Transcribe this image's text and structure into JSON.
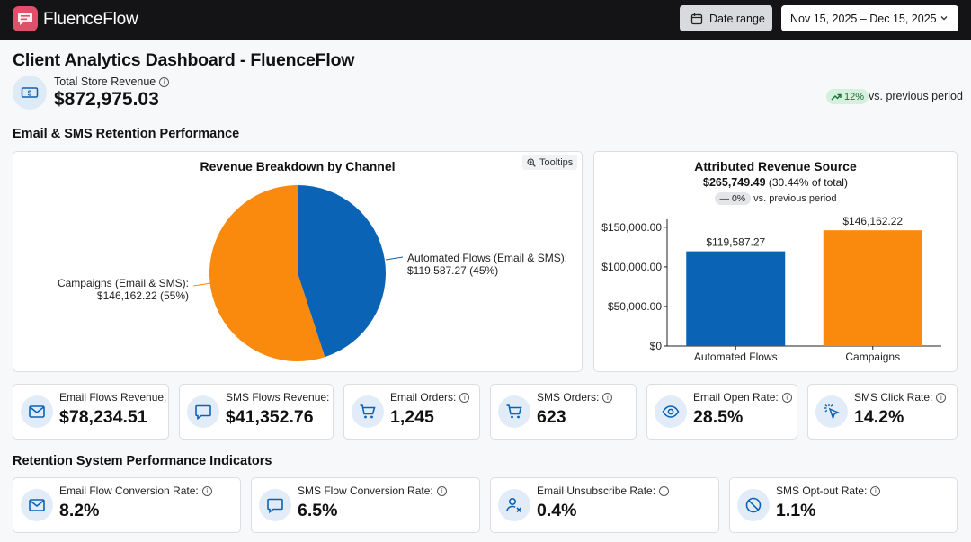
{
  "app": {
    "brand": "FluenceFlow"
  },
  "header": {
    "date_range_button": "Date range",
    "date_range_value": "Nov 15, 2025 – Dec 15, 2025"
  },
  "page": {
    "title": "Client Analytics Dashboard - FluenceFlow"
  },
  "total_revenue": {
    "label": "Total Store Revenue",
    "value": "$872,975.03",
    "change": "12%",
    "change_text": "vs. previous period"
  },
  "sections": {
    "retention_performance": "Email & SMS Retention Performance",
    "system_indicators": "Retention System Performance Indicators"
  },
  "pie_card": {
    "title": "Revenue Breakdown by Channel",
    "tooltips_label": "Tooltips",
    "label_flows_line1": "Automated Flows (Email & SMS):",
    "label_flows_line2": "$119,587.27 (45%)",
    "label_campaigns_line1": "Campaigns (Email & SMS):",
    "label_campaigns_line2": "$146,162.22 (55%)"
  },
  "bar_card": {
    "title": "Attributed Revenue Source",
    "value": "$265,749.49",
    "value_note": "(30.44% of total)",
    "change": "— 0%",
    "change_text": "vs. previous period"
  },
  "chart_data": [
    {
      "type": "pie",
      "title": "Revenue Breakdown by Channel",
      "slices": [
        {
          "label": "Automated Flows (Email & SMS)",
          "value": 119587.27,
          "percent": 45,
          "color": "#0b63b5"
        },
        {
          "label": "Campaigns (Email & SMS)",
          "value": 146162.22,
          "percent": 55,
          "color": "#f98a0d"
        }
      ]
    },
    {
      "type": "bar",
      "title": "Attributed Revenue Source",
      "categories": [
        "Automated Flows",
        "Campaigns"
      ],
      "values": [
        119587.27,
        146162.22
      ],
      "value_labels": [
        "$119,587.27",
        "$146,162.22"
      ],
      "colors": [
        "#0b63b5",
        "#f98a0d"
      ],
      "yticks": [
        "$0",
        "$50,000.00",
        "$100,000.00",
        "$150,000.00"
      ],
      "ylim": [
        0,
        160000
      ]
    }
  ],
  "metrics_row1": [
    {
      "label": "Email Flows Revenue:",
      "value": "$78,234.51",
      "icon": "mail-icon"
    },
    {
      "label": "SMS Flows Revenue:",
      "value": "$41,352.76",
      "icon": "chat-icon"
    },
    {
      "label": "Email Orders:",
      "value": "1,245",
      "icon": "cart-icon"
    },
    {
      "label": "SMS Orders:",
      "value": "623",
      "icon": "cart-icon"
    },
    {
      "label": "Email Open Rate:",
      "value": "28.5%",
      "icon": "eye-icon"
    },
    {
      "label": "SMS Click Rate:",
      "value": "14.2%",
      "icon": "click-icon"
    }
  ],
  "metrics_row2": [
    {
      "label": "Email Flow Conversion Rate:",
      "value": "8.2%",
      "icon": "mail-icon"
    },
    {
      "label": "SMS Flow Conversion Rate:",
      "value": "6.5%",
      "icon": "chat-icon"
    },
    {
      "label": "Email Unsubscribe Rate:",
      "value": "0.4%",
      "icon": "user-remove-icon"
    },
    {
      "label": "SMS Opt-out Rate:",
      "value": "1.1%",
      "icon": "block-icon"
    }
  ],
  "colors": {
    "accent_blue": "#0b63b5",
    "accent_orange": "#f98a0d",
    "topbar": "#141417",
    "positive": "#1d6f3a"
  }
}
